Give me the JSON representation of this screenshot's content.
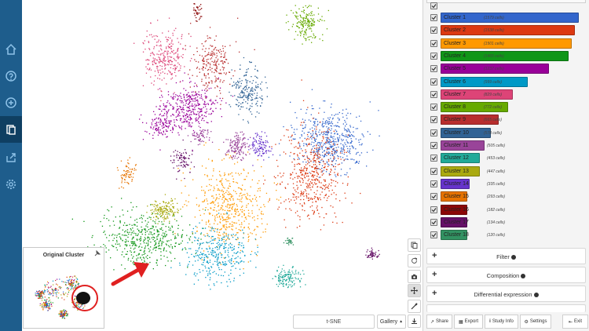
{
  "left_nav": {
    "items": [
      {
        "icon": "home-icon"
      },
      {
        "icon": "help-icon"
      },
      {
        "icon": "add-icon"
      },
      {
        "icon": "clipboard-icon",
        "active": true
      },
      {
        "icon": "export-icon"
      },
      {
        "icon": "settings-gear-icon"
      }
    ]
  },
  "plot": {
    "projection_label": "t-SNE",
    "gallery_label": "Gallery",
    "minimap_title": "Original Cluster"
  },
  "toolbar": {
    "buttons": [
      "copy-icon",
      "refresh-icon",
      "camera-icon",
      "move-icon",
      "brush-icon",
      "download-icon"
    ]
  },
  "clusters": [
    {
      "name": "Cluster 1",
      "count": "(1579 cells)",
      "color": "#3366cc",
      "value": 1579
    },
    {
      "name": "Cluster 2",
      "count": "(1538 cells)",
      "color": "#dc3912",
      "value": 1538
    },
    {
      "name": "Cluster 3",
      "count": "(1501 cells)",
      "color": "#ff9900",
      "value": 1501
    },
    {
      "name": "Cluster 4",
      "count": "(1465 cells)",
      "color": "#109618",
      "value": 1465
    },
    {
      "name": "Cluster 5",
      "count": "(1237 cells)",
      "color": "#990099",
      "value": 1237
    },
    {
      "name": "Cluster 6",
      "count": "(999 cells)",
      "color": "#0099c6",
      "value": 999
    },
    {
      "name": "Cluster 7",
      "count": "(829 cells)",
      "color": "#dd4477",
      "value": 829
    },
    {
      "name": "Cluster 8",
      "count": "(772 cells)",
      "color": "#66aa00",
      "value": 772
    },
    {
      "name": "Cluster 9",
      "count": "(665 cells)",
      "color": "#b82e2e",
      "value": 665
    },
    {
      "name": "Cluster 10",
      "count": "(578 cells)",
      "color": "#316395",
      "value": 578
    },
    {
      "name": "Cluster 11",
      "count": "(505 cells)",
      "color": "#994499",
      "value": 505
    },
    {
      "name": "Cluster 12",
      "count": "(453 cells)",
      "color": "#22aa99",
      "value": 453
    },
    {
      "name": "Cluster 13",
      "count": "(447 cells)",
      "color": "#aaaa11",
      "value": 447
    },
    {
      "name": "Cluster 14",
      "count": "(335 cells)",
      "color": "#6633cc",
      "value": 335
    },
    {
      "name": "Cluster 15",
      "count": "(293 cells)",
      "color": "#e67300",
      "value": 293
    },
    {
      "name": "Cluster 16",
      "count": "(182 cells)",
      "color": "#8b0707",
      "value": 182
    },
    {
      "name": "Cluster 17",
      "count": "(134 cells)",
      "color": "#651067",
      "value": 134
    },
    {
      "name": "Cluster 18",
      "count": "(120 cells)",
      "color": "#329262",
      "value": 120
    }
  ],
  "sections": [
    {
      "label": "Filter"
    },
    {
      "label": "Composition"
    },
    {
      "label": "Differential expression"
    }
  ],
  "footer": {
    "share": "Share",
    "export": "Export",
    "study_info": "Study Info",
    "settings": "Settings",
    "exit": "Exit"
  },
  "colors": {
    "nav_bg": "#1e5d8c",
    "nav_active": "#0f3f62",
    "arrow": "#e02020"
  }
}
